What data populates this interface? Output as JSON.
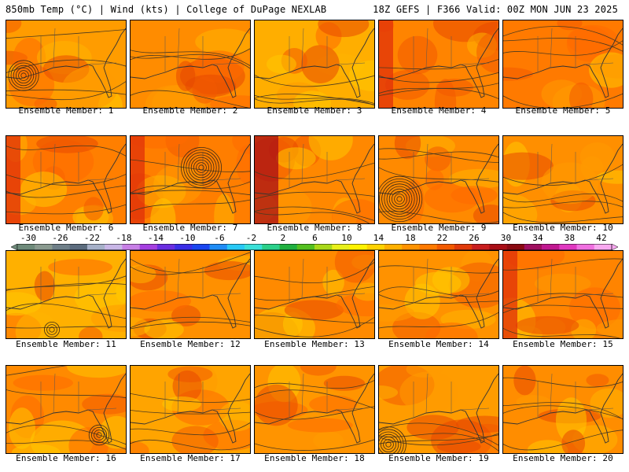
{
  "header": {
    "left": "850mb Temp (°C) | Wind (kts) | College of DuPage NEXLAB",
    "right": "18Z GEFS | F366 Valid: 00Z MON JUN 23 2025"
  },
  "panel_label_prefix": "Ensemble Member: ",
  "members": [
    {
      "id": 1,
      "label": "Ensemble Member: 1"
    },
    {
      "id": 2,
      "label": "Ensemble Member: 2"
    },
    {
      "id": 3,
      "label": "Ensemble Member: 3"
    },
    {
      "id": 4,
      "label": "Ensemble Member: 4"
    },
    {
      "id": 5,
      "label": "Ensemble Member: 5"
    },
    {
      "id": 6,
      "label": "Ensemble Member: 6"
    },
    {
      "id": 7,
      "label": "Ensemble Member: 7"
    },
    {
      "id": 8,
      "label": "Ensemble Member: 8"
    },
    {
      "id": 9,
      "label": "Ensemble Member: 9"
    },
    {
      "id": 10,
      "label": "Ensemble Member: 10"
    },
    {
      "id": 11,
      "label": "Ensemble Member: 11"
    },
    {
      "id": 12,
      "label": "Ensemble Member: 12"
    },
    {
      "id": 13,
      "label": "Ensemble Member: 13"
    },
    {
      "id": 14,
      "label": "Ensemble Member: 14"
    },
    {
      "id": 15,
      "label": "Ensemble Member: 15"
    },
    {
      "id": 16,
      "label": "Ensemble Member: 16"
    },
    {
      "id": 17,
      "label": "Ensemble Member: 17"
    },
    {
      "id": 18,
      "label": "Ensemble Member: 18"
    },
    {
      "id": 19,
      "label": "Ensemble Member: 19"
    },
    {
      "id": 20,
      "label": "Ensemble Member: 20"
    }
  ],
  "colorbar": {
    "ticks": [
      "-30",
      "-26",
      "-22",
      "-18",
      "-14",
      "-10",
      "-6",
      "-2",
      "2",
      "6",
      "10",
      "14",
      "18",
      "22",
      "26",
      "30",
      "34",
      "38",
      "42"
    ],
    "colors": [
      "#6e8a7a",
      "#8a9a8f",
      "#6f7f88",
      "#5c6c7e",
      "#a6b0c8",
      "#c8b6e6",
      "#c77fe6",
      "#a53fe0",
      "#6a2ee0",
      "#3a2ee6",
      "#1a46f0",
      "#1f8cf5",
      "#28c8f5",
      "#3ae0d8",
      "#2bd08a",
      "#20b040",
      "#54c020",
      "#a8d81a",
      "#e8f01a",
      "#fff200",
      "#ffd200",
      "#ffb000",
      "#ff9200",
      "#ff7a00",
      "#f25a00",
      "#e03a0a",
      "#c81e1e",
      "#a80e16",
      "#8a0a12",
      "#a01060",
      "#c01890",
      "#e038c0",
      "#f070e0",
      "#f8a8f0"
    ]
  }
}
